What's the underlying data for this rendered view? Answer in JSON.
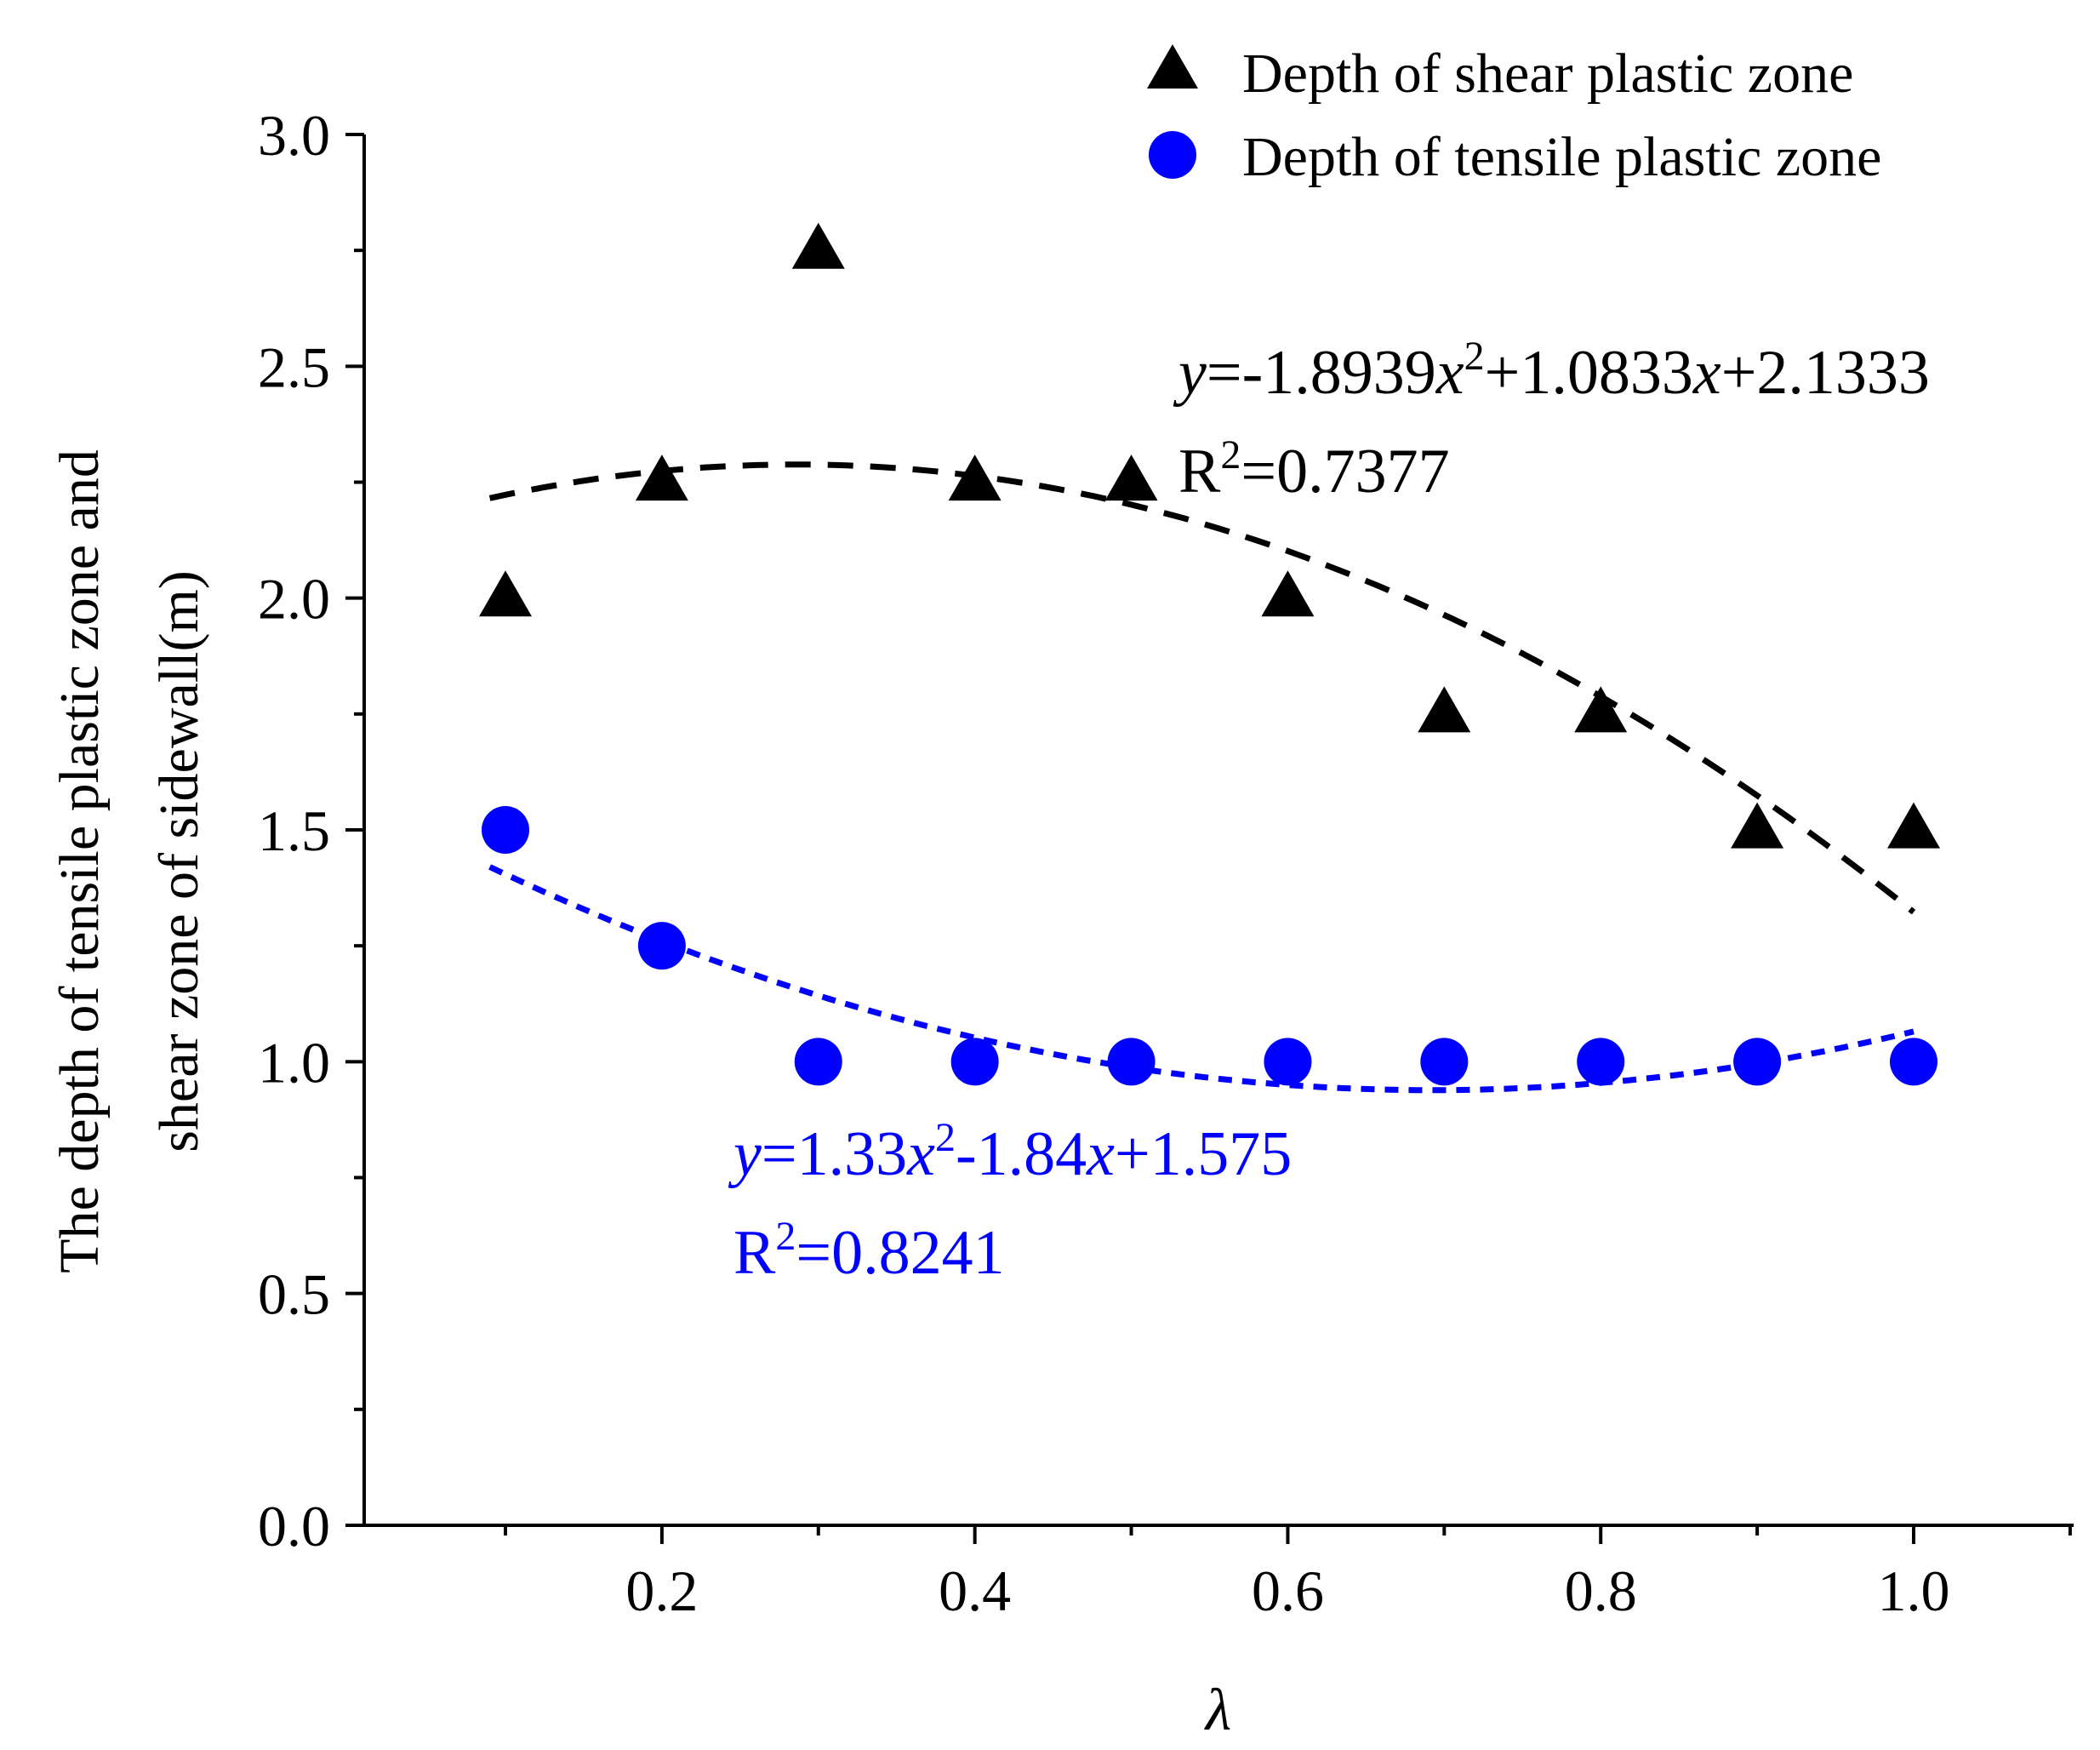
{
  "chart_data": {
    "type": "scatter",
    "xlabel": "λ",
    "ylabel_lines": [
      "The depth of tensile plastic zone and",
      "shear zone of sidewall(m)"
    ],
    "xlim": [
      0.0,
      1.1
    ],
    "ylim": [
      0.0,
      3.0
    ],
    "x_ticks": [
      0.2,
      0.4,
      0.6,
      0.8,
      1.0
    ],
    "x_tick_labels": [
      "0.2",
      "0.4",
      "0.6",
      "0.8",
      "1.0"
    ],
    "x_minor_ticks": [
      0.1,
      0.3,
      0.5,
      0.7,
      0.9,
      1.1
    ],
    "y_ticks": [
      0.0,
      0.5,
      1.0,
      1.5,
      2.0,
      2.5,
      3.0
    ],
    "y_tick_labels": [
      "0.0",
      "0.5",
      "1.0",
      "1.5",
      "2.0",
      "2.5",
      "3.0"
    ],
    "y_minor_ticks": [
      0.25,
      0.75,
      1.25,
      1.75,
      2.25,
      2.75
    ],
    "legend_position": "top-right",
    "series": [
      {
        "name": "Depth of shear plastic zone",
        "marker": "triangle",
        "color": "#000000",
        "x": [
          0.1,
          0.2,
          0.3,
          0.4,
          0.5,
          0.6,
          0.7,
          0.8,
          0.9,
          1.0
        ],
        "y": [
          2.0,
          2.25,
          2.75,
          2.25,
          2.25,
          2.0,
          1.75,
          1.75,
          1.5,
          1.5
        ],
        "fit": {
          "coefficients": [
            -1.8939,
            1.0833,
            2.1333
          ],
          "range": [
            0.09,
            1.0
          ],
          "equation_y": "y",
          "equation_rest": "=-1.8939",
          "equation_x1": "x",
          "equation_sup": "2",
          "equation_mid": "+1.0833",
          "equation_x2": "x",
          "equation_end": "+2.1333",
          "r2_prefix": "R",
          "r2_sup": "2",
          "r2_value": "=0.7377"
        }
      },
      {
        "name": "Depth of tensile plastic zone",
        "marker": "circle",
        "color": "#0000ff",
        "x": [
          0.1,
          0.2,
          0.3,
          0.4,
          0.5,
          0.6,
          0.7,
          0.8,
          0.9,
          1.0
        ],
        "y": [
          1.5,
          1.25,
          1.0,
          1.0,
          1.0,
          1.0,
          1.0,
          1.0,
          1.0,
          1.0
        ],
        "fit": {
          "coefficients": [
            1.33,
            -1.84,
            1.575
          ],
          "range": [
            0.09,
            1.0
          ],
          "equation_y": "y",
          "equation_rest": "=1.33",
          "equation_x1": "x",
          "equation_sup": "2",
          "equation_mid": "-1.84",
          "equation_x2": "x",
          "equation_end": "+1.575",
          "r2_prefix": "R",
          "r2_sup": "2",
          "r2_value": "=0.8241"
        }
      }
    ]
  }
}
